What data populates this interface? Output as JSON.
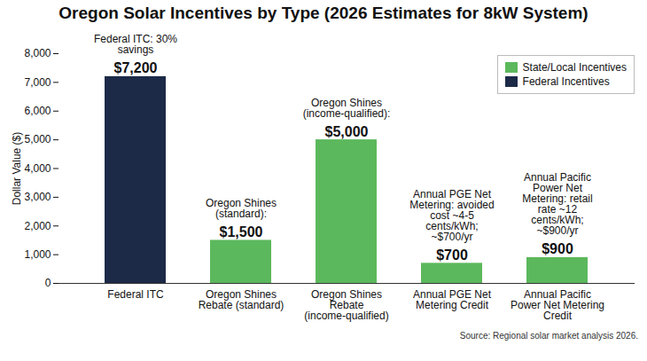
{
  "chart_data": {
    "type": "bar",
    "title": "Oregon Solar Incentives by Type (2026 Estimates for 8kW System)",
    "y_label": "Dollar Value ($)",
    "categories": [
      "Federal ITC",
      "Oregon Shines Rebate (standard)",
      "Oregon Shines Rebate (income-qualified)",
      "Annual PGE Net Metering Credit",
      "Annual Pacific Power Net Metering Credit"
    ],
    "series": [
      {
        "name": "State/Local Incentives",
        "color": "#5cb85c",
        "values": [
          null,
          1500,
          5000,
          700,
          900
        ],
        "value_labels": [
          null,
          "$1,500",
          "$5,000",
          "$700",
          "$900"
        ]
      },
      {
        "name": "Federal Incentives",
        "color": "#1c2a48",
        "values": [
          7200,
          null,
          null,
          null,
          null
        ],
        "value_labels": [
          "$7,200",
          null,
          null,
          null,
          null
        ]
      }
    ],
    "annotations": [
      "Federal ITC: 30% savings",
      "Oregon Shines (standard):",
      "Oregon Shines (income-qualified):",
      "Annual PGE Net Metering: avoided cost ~4-5 cents/kWh; ~$700/yr",
      "Annual Pacific Power Net Metering: retail rate ~12 cents/kWh; ~$900/yr"
    ],
    "source": "Source: Regional solar market analysis 2026.",
    "ylim": [
      0,
      8000
    ],
    "yticks": [
      0,
      {
        "value": 1000,
        "label": "1,000"
      },
      {
        "value": 2000,
        "label": "2,000"
      },
      {
        "value": 3000,
        "label": "3,000"
      },
      {
        "value": 4000,
        "label": "4,000"
      },
      {
        "value": 5000,
        "label": "5,000"
      },
      {
        "value": 6000,
        "label": "6,000"
      },
      {
        "value": 7000,
        "label": "7,000"
      },
      {
        "value": 8000,
        "label": "8,000"
      }
    ],
    "grid": false,
    "legend": "top-right",
    "data_labels": true,
    "stacked": false
  }
}
